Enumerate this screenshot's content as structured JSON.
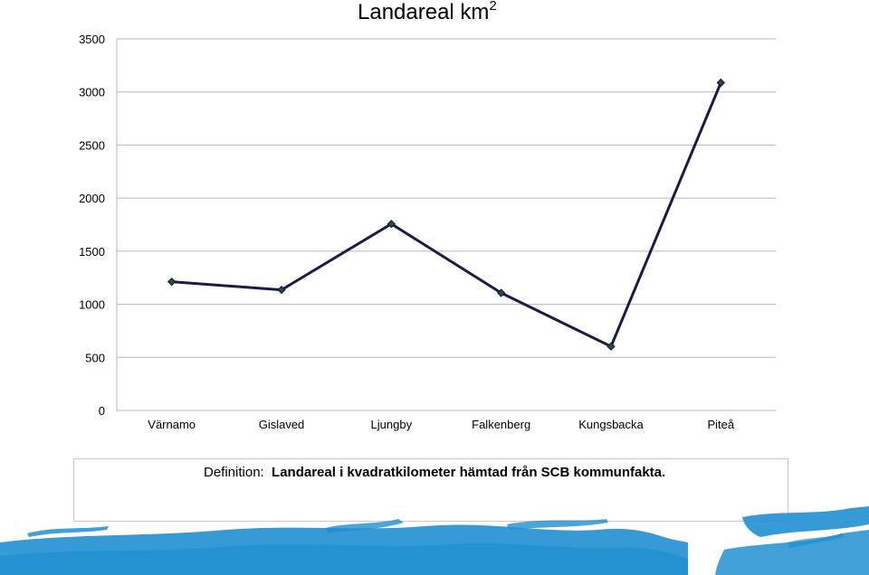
{
  "chart_data": {
    "type": "line",
    "title": "Landareal km",
    "title_superscript": "2",
    "categories": [
      "Värnamo",
      "Gislaved",
      "Ljungby",
      "Falkenberg",
      "Kungsbacka",
      "Piteå"
    ],
    "series": [
      {
        "values": [
          1212,
          1136,
          1757,
          1107,
          603,
          3087
        ]
      }
    ],
    "ylim": [
      0,
      3500
    ],
    "yticks": [
      "0",
      "500",
      "1000",
      "1500",
      "2000",
      "2500",
      "3000",
      "3500"
    ],
    "grid": true,
    "line_color": "#1c1a4a",
    "marker_color": "#2e4a3e"
  },
  "definition": {
    "label": "Definition:",
    "text": "Landareal i kvadratkilometer hämtad från SCB kommunfakta."
  },
  "decoration": {
    "wave_color": "#1f8fd0"
  }
}
